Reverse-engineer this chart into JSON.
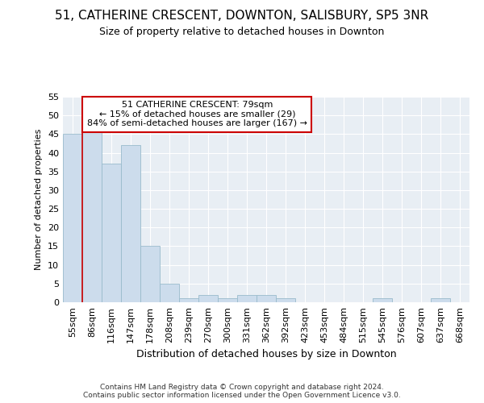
{
  "title1": "51, CATHERINE CRESCENT, DOWNTON, SALISBURY, SP5 3NR",
  "title2": "Size of property relative to detached houses in Downton",
  "xlabel": "Distribution of detached houses by size in Downton",
  "ylabel": "Number of detached properties",
  "bin_labels": [
    "55sqm",
    "86sqm",
    "116sqm",
    "147sqm",
    "178sqm",
    "208sqm",
    "239sqm",
    "270sqm",
    "300sqm",
    "331sqm",
    "362sqm",
    "392sqm",
    "423sqm",
    "453sqm",
    "484sqm",
    "515sqm",
    "545sqm",
    "576sqm",
    "607sqm",
    "637sqm",
    "668sqm"
  ],
  "bar_values": [
    45,
    46,
    37,
    42,
    15,
    5,
    1,
    2,
    1,
    2,
    2,
    1,
    0,
    0,
    0,
    0,
    1,
    0,
    0,
    1,
    0
  ],
  "bar_color": "#ccdcec",
  "bar_edge_color": "#99bbcc",
  "red_line_x": 1.0,
  "annotation_title": "51 CATHERINE CRESCENT: 79sqm",
  "annotation_line1": "← 15% of detached houses are smaller (29)",
  "annotation_line2": "84% of semi-detached houses are larger (167) →",
  "annotation_box_color": "#ffffff",
  "annotation_box_edge": "#cc0000",
  "footer": "Contains HM Land Registry data © Crown copyright and database right 2024.\nContains public sector information licensed under the Open Government Licence v3.0.",
  "bg_color": "#e8eef4",
  "grid_color": "#ffffff",
  "ylim": [
    0,
    55
  ],
  "yticks": [
    0,
    5,
    10,
    15,
    20,
    25,
    30,
    35,
    40,
    45,
    50,
    55
  ],
  "title1_fontsize": 11,
  "title2_fontsize": 9,
  "xlabel_fontsize": 9,
  "ylabel_fontsize": 8,
  "tick_fontsize": 8,
  "ann_fontsize": 8,
  "footer_fontsize": 6.5
}
